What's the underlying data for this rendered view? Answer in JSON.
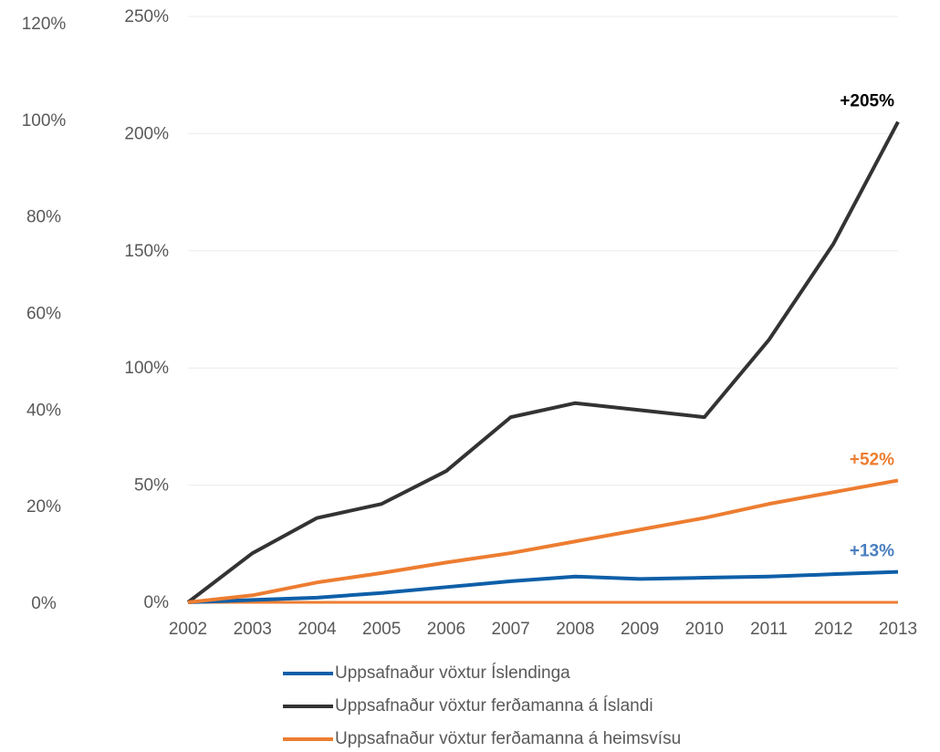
{
  "chart_data": {
    "type": "line",
    "categories": [
      "2002",
      "2003",
      "2004",
      "2005",
      "2006",
      "2007",
      "2008",
      "2009",
      "2010",
      "2011",
      "2012",
      "2013"
    ],
    "series": [
      {
        "name": "Uppsafnaður vöxtur Íslendinga",
        "color": "#0e5fa8",
        "label_color": "#4a7ec0",
        "values": [
          0,
          1,
          2,
          4,
          6.5,
          9,
          11,
          10,
          10.5,
          11,
          12,
          13
        ],
        "value_labels": [
          null,
          null,
          null,
          null,
          null,
          null,
          null,
          null,
          null,
          null,
          null,
          "+13%"
        ]
      },
      {
        "name": "Uppsafnaður vöxtur ferðamanna á Íslandi",
        "color": "#333333",
        "label_color": "#000000",
        "values": [
          0,
          21,
          36,
          42,
          56,
          79,
          85,
          82,
          79,
          112,
          153,
          205
        ],
        "value_labels": [
          null,
          null,
          null,
          null,
          null,
          null,
          null,
          null,
          null,
          null,
          null,
          "+205%"
        ]
      },
      {
        "name": "Uppsafnaður vöxtur ferðamanna á heimsvísu",
        "color": "#ed7d31",
        "label_color": "#ed7d31",
        "values": [
          0,
          3,
          8.5,
          12.5,
          17,
          21,
          26,
          31,
          36,
          42,
          47,
          52
        ],
        "value_labels": [
          null,
          null,
          null,
          null,
          null,
          null,
          null,
          null,
          null,
          null,
          null,
          "+52%"
        ]
      }
    ],
    "ylim": [
      0,
      250
    ],
    "yticks": [
      {
        "value": 0,
        "label": "0%"
      },
      {
        "value": 50,
        "label": "50%"
      },
      {
        "value": 100,
        "label": "100%"
      },
      {
        "value": 150,
        "label": "150%"
      },
      {
        "value": 200,
        "label": "200%"
      },
      {
        "value": 250,
        "label": "250%"
      }
    ],
    "y2lim": [
      0,
      120
    ],
    "y2ticks": [
      {
        "value": 0,
        "label": "0%"
      },
      {
        "value": 20,
        "label": "20%"
      },
      {
        "value": 40,
        "label": "40%"
      },
      {
        "value": 60,
        "label": "60%"
      },
      {
        "value": 80,
        "label": "80%"
      },
      {
        "value": 100,
        "label": "100%"
      },
      {
        "value": 120,
        "label": "120%"
      }
    ],
    "grid": true,
    "legend": "bottom"
  }
}
